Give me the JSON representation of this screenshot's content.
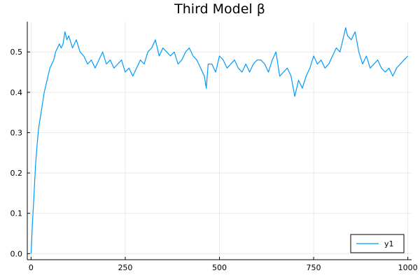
{
  "chart_data": {
    "type": "line",
    "title": "Third Model β",
    "xlabel": "",
    "ylabel": "",
    "xlim": [
      -10,
      1010
    ],
    "ylim": [
      -0.015,
      0.575
    ],
    "x_ticks": [
      0,
      250,
      500,
      750,
      1000
    ],
    "y_ticks": [
      0.0,
      0.1,
      0.2,
      0.3,
      0.4,
      0.5
    ],
    "x_tick_labels": [
      "0",
      "250",
      "500",
      "750",
      "1000"
    ],
    "y_tick_labels": [
      "0.0",
      "0.1",
      "0.2",
      "0.3",
      "0.4",
      "0.5"
    ],
    "grid": true,
    "legend_position": "bottom-right",
    "series": [
      {
        "name": "y1",
        "color": "#009AFA",
        "x": [
          0,
          4,
          8,
          12,
          16,
          20,
          25,
          30,
          35,
          40,
          45,
          50,
          55,
          60,
          65,
          70,
          75,
          80,
          85,
          90,
          95,
          100,
          110,
          120,
          130,
          140,
          150,
          160,
          170,
          180,
          190,
          200,
          210,
          220,
          230,
          240,
          250,
          260,
          270,
          280,
          290,
          300,
          310,
          320,
          330,
          340,
          350,
          360,
          370,
          380,
          390,
          400,
          410,
          420,
          430,
          440,
          450,
          460,
          465,
          470,
          480,
          490,
          500,
          510,
          520,
          530,
          540,
          550,
          560,
          570,
          580,
          590,
          600,
          610,
          620,
          630,
          640,
          650,
          660,
          670,
          680,
          690,
          700,
          710,
          720,
          730,
          740,
          750,
          760,
          770,
          780,
          790,
          800,
          810,
          820,
          830,
          835,
          840,
          850,
          860,
          870,
          880,
          890,
          900,
          910,
          920,
          930,
          940,
          950,
          960,
          970,
          980,
          990,
          1000
        ],
        "y": [
          0.0,
          0.08,
          0.15,
          0.22,
          0.27,
          0.31,
          0.34,
          0.37,
          0.4,
          0.42,
          0.44,
          0.46,
          0.47,
          0.48,
          0.5,
          0.51,
          0.52,
          0.51,
          0.52,
          0.55,
          0.53,
          0.54,
          0.51,
          0.53,
          0.5,
          0.49,
          0.47,
          0.48,
          0.46,
          0.48,
          0.5,
          0.47,
          0.48,
          0.46,
          0.47,
          0.48,
          0.45,
          0.46,
          0.44,
          0.46,
          0.48,
          0.47,
          0.5,
          0.51,
          0.53,
          0.49,
          0.51,
          0.5,
          0.49,
          0.5,
          0.47,
          0.48,
          0.5,
          0.51,
          0.49,
          0.48,
          0.46,
          0.44,
          0.41,
          0.47,
          0.47,
          0.45,
          0.49,
          0.48,
          0.46,
          0.47,
          0.48,
          0.46,
          0.45,
          0.47,
          0.45,
          0.47,
          0.48,
          0.48,
          0.47,
          0.45,
          0.48,
          0.5,
          0.44,
          0.45,
          0.46,
          0.44,
          0.39,
          0.43,
          0.41,
          0.44,
          0.46,
          0.49,
          0.47,
          0.48,
          0.46,
          0.47,
          0.49,
          0.51,
          0.5,
          0.54,
          0.56,
          0.54,
          0.53,
          0.55,
          0.5,
          0.47,
          0.49,
          0.46,
          0.47,
          0.48,
          0.46,
          0.45,
          0.46,
          0.44,
          0.46,
          0.47,
          0.48,
          0.49
        ]
      }
    ]
  }
}
